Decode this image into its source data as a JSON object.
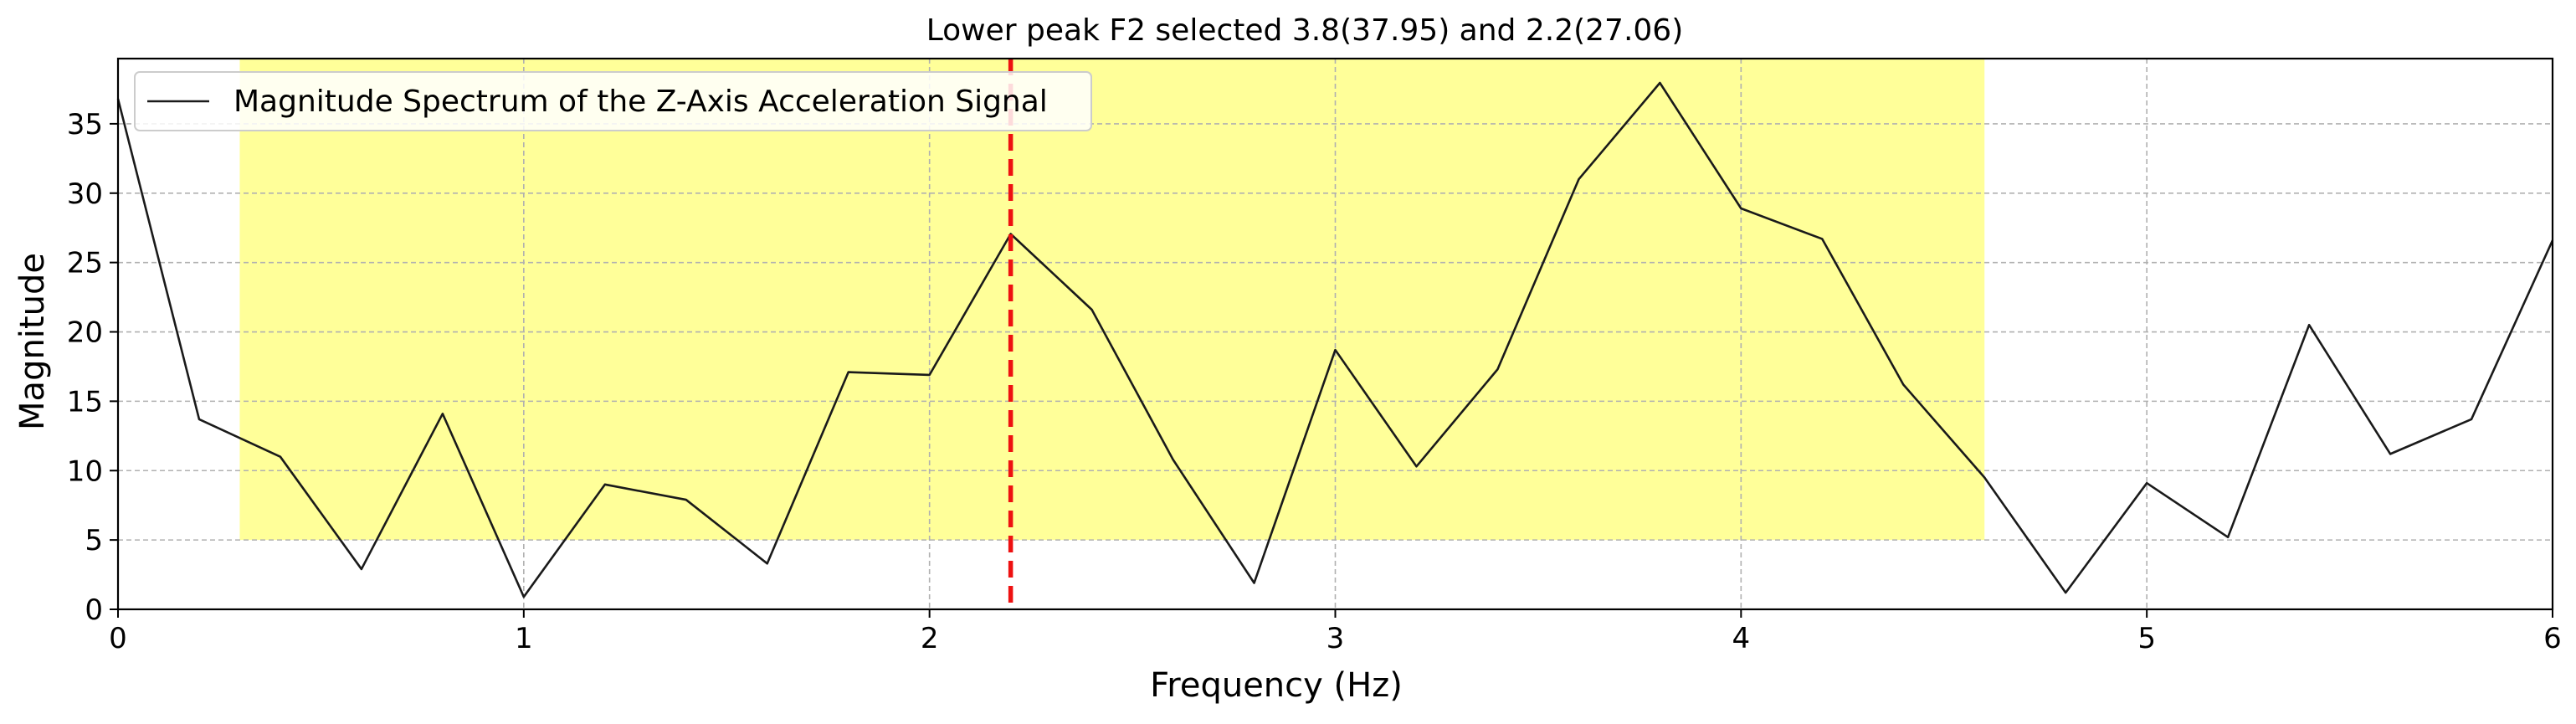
{
  "chart_data": {
    "type": "line",
    "title": "Lower peak F2 selected 3.8(37.95) and 2.2(27.06)",
    "xlabel": "Frequency (Hz)",
    "ylabel": "Magnitude",
    "xlim": [
      0,
      6
    ],
    "ylim": [
      0,
      39.7
    ],
    "xticks": [
      0,
      1,
      2,
      3,
      4,
      5,
      6
    ],
    "xtick_labels": [
      "0",
      "1",
      "2",
      "3",
      "4",
      "5",
      "6"
    ],
    "yticks": [
      0,
      5,
      10,
      15,
      20,
      25,
      30,
      35
    ],
    "ytick_labels": [
      "0",
      "5",
      "10",
      "15",
      "20",
      "25",
      "30",
      "35"
    ],
    "grid": true,
    "legend_position": "top-left",
    "series": [
      {
        "name": "Magnitude Spectrum of the Z-Axis Acceleration Signal",
        "color": "#1a1a1a",
        "x": [
          0.0,
          0.2,
          0.4,
          0.6,
          0.8,
          1.0,
          1.2,
          1.4,
          1.6,
          1.8,
          2.0,
          2.2,
          2.4,
          2.6,
          2.8,
          3.0,
          3.2,
          3.4,
          3.6,
          3.8,
          4.0,
          4.2,
          4.4,
          4.6,
          4.8,
          5.0,
          5.2,
          5.4,
          5.6,
          5.8,
          6.0
        ],
        "values": [
          36.8,
          13.7,
          11.0,
          2.9,
          14.1,
          0.9,
          9.0,
          7.9,
          3.3,
          17.1,
          16.9,
          27.06,
          21.6,
          10.8,
          1.9,
          18.7,
          10.3,
          17.3,
          31.0,
          37.95,
          28.9,
          26.7,
          16.2,
          9.5,
          1.2,
          9.1,
          5.2,
          20.5,
          11.2,
          13.7,
          26.6
        ]
      }
    ],
    "highlight_region": {
      "x": [
        0.3,
        4.6
      ],
      "y": [
        5,
        39.7
      ],
      "color": "#ffff99"
    },
    "vertical_line": {
      "x": 2.2,
      "color": "#ee1111",
      "style": "dashed"
    }
  }
}
